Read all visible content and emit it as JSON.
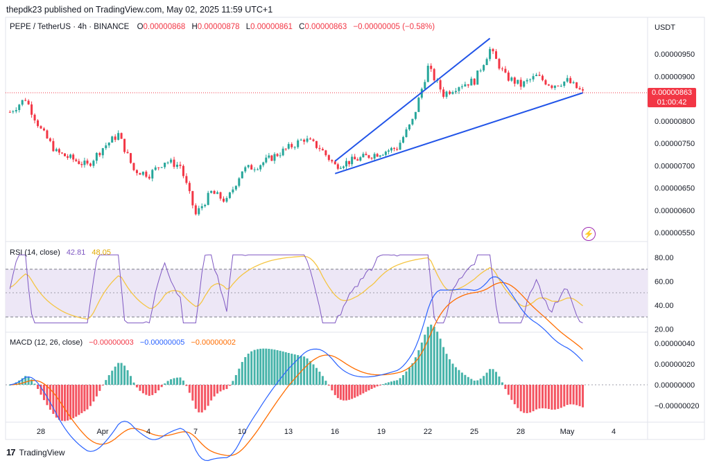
{
  "header": {
    "publisher": "thepdk23 published on TradingView.com, May 02, 2025 11:59 UTC+1",
    "symbol": "PEPE / TetherUS · 4h · BINANCE",
    "ohlc": {
      "o_label": "O",
      "o": "0.00000868",
      "h_label": "H",
      "h": "0.00000878",
      "l_label": "L",
      "l": "0.00000861",
      "c_label": "C",
      "c": "0.00000863",
      "change": "−0.00000005 (−0.58%)"
    }
  },
  "price_axis": {
    "currency": "USDT",
    "labels": [
      "0.00000950",
      "0.00000900",
      "0.00000800",
      "0.00000750",
      "0.00000700",
      "0.00000650",
      "0.00000600",
      "0.00000550"
    ],
    "last_price": "0.00000863",
    "countdown": "01:00:42"
  },
  "rsi": {
    "title": "RSI (14, close)",
    "value": "42.81",
    "ma_value": "48.05",
    "axis_labels": [
      "80.00",
      "60.00",
      "40.00",
      "20.00"
    ],
    "colors": {
      "rsi": "#7e57c2",
      "ma": "#f5c542",
      "band": "#ede7f6"
    }
  },
  "macd": {
    "title": "MACD (12, 26, close)",
    "histogram": "−0.00000003",
    "macd_value": "−0.00000005",
    "signal_value": "−0.00000002",
    "axis_labels": [
      "0.00000040",
      "0.00000020",
      "0.00000000",
      "−0.00000020"
    ],
    "colors": {
      "macd": "#2962ff",
      "signal": "#ff6d00",
      "hist_up": "#26a69a",
      "hist_down": "#f23645"
    }
  },
  "time_axis": {
    "labels": [
      "28",
      "Apr",
      "4",
      "7",
      "10",
      "13",
      "16",
      "19",
      "22",
      "25",
      "28",
      "May",
      "4"
    ]
  },
  "colors": {
    "up": "#26a69a",
    "down": "#f23645",
    "trendline": "#2154e8"
  },
  "branding": {
    "logo_text": "TradingView"
  },
  "icons": {
    "alert": "lightning-icon",
    "logo": "tradingview-logo-icon"
  },
  "chart_data": [
    {
      "type": "candlestick",
      "title": "PEPE / TetherUS · 4h · BINANCE",
      "x_ticks": [
        "28",
        "Apr",
        "4",
        "7",
        "10",
        "13",
        "16",
        "19",
        "22",
        "25",
        "28",
        "May",
        "4"
      ],
      "ylim": [
        5.3e-06,
        9.9e-06
      ],
      "close_path": [
        {
          "date": "Mar 26",
          "close": 8.2e-06
        },
        {
          "date": "Mar 27",
          "close": 8.5e-06
        },
        {
          "date": "Mar 28",
          "close": 7.8e-06
        },
        {
          "date": "Mar 29",
          "close": 7.3e-06
        },
        {
          "date": "Mar 31",
          "close": 7e-06
        },
        {
          "date": "Apr 1",
          "close": 7.4e-06
        },
        {
          "date": "Apr 2",
          "close": 7.7e-06
        },
        {
          "date": "Apr 3",
          "close": 6.9e-06
        },
        {
          "date": "Apr 4",
          "close": 6.8e-06
        },
        {
          "date": "Apr 5",
          "close": 7.1e-06
        },
        {
          "date": "Apr 6",
          "close": 7e-06
        },
        {
          "date": "Apr 7",
          "close": 5.9e-06
        },
        {
          "date": "Apr 8",
          "close": 6.4e-06
        },
        {
          "date": "Apr 9",
          "close": 6.2e-06
        },
        {
          "date": "Apr 10",
          "close": 6.9e-06
        },
        {
          "date": "Apr 11",
          "close": 7e-06
        },
        {
          "date": "Apr 13",
          "close": 7.4e-06
        },
        {
          "date": "Apr 14",
          "close": 7.6e-06
        },
        {
          "date": "Apr 15",
          "close": 7.4e-06
        },
        {
          "date": "Apr 16",
          "close": 7e-06
        },
        {
          "date": "Apr 18",
          "close": 7.2e-06
        },
        {
          "date": "Apr 20",
          "close": 7.4e-06
        },
        {
          "date": "Apr 21",
          "close": 8e-06
        },
        {
          "date": "Apr 22",
          "close": 9.2e-06
        },
        {
          "date": "Apr 23",
          "close": 8.6e-06
        },
        {
          "date": "Apr 24",
          "close": 8.8e-06
        },
        {
          "date": "Apr 25",
          "close": 8.9e-06
        },
        {
          "date": "Apr 26",
          "close": 9.6e-06
        },
        {
          "date": "Apr 27",
          "close": 9e-06
        },
        {
          "date": "Apr 28",
          "close": 8.8e-06
        },
        {
          "date": "Apr 29",
          "close": 9e-06
        },
        {
          "date": "Apr 30",
          "close": 8.8e-06
        },
        {
          "date": "May 1",
          "close": 8.9e-06
        },
        {
          "date": "May 2",
          "close": 8.63e-06
        }
      ],
      "trendlines": [
        {
          "name": "upper",
          "from": {
            "date": "Apr 16",
            "price": 7.1e-06
          },
          "to": {
            "date": "Apr 26",
            "price": 9.85e-06
          }
        },
        {
          "name": "lower",
          "from": {
            "date": "Apr 16",
            "price": 6.82e-06
          },
          "to": {
            "date": "May 2",
            "price": 8.63e-06
          }
        }
      ]
    }
  ]
}
